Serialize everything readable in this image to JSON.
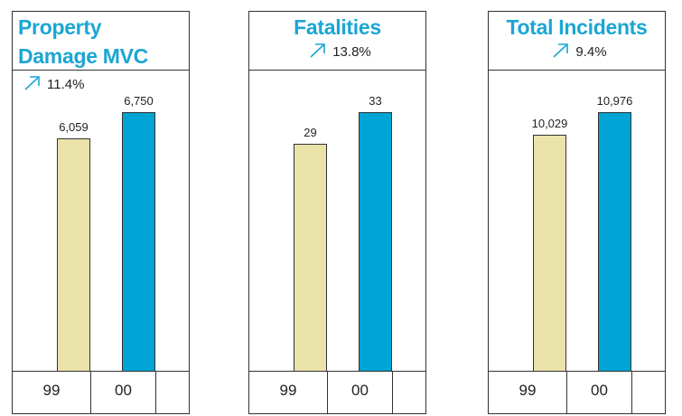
{
  "chart_data": [
    {
      "type": "bar",
      "title": "Property Damage MVC",
      "change": "11.4%",
      "categories": [
        "99",
        "00"
      ],
      "values": [
        6059,
        6750
      ],
      "value_labels": [
        "6,059",
        "6,750"
      ],
      "colors": [
        "#e9e3a9",
        "#00a5d5"
      ]
    },
    {
      "type": "bar",
      "title": "Fatalities",
      "change": "13.8%",
      "categories": [
        "99",
        "00"
      ],
      "values": [
        29,
        33
      ],
      "value_labels": [
        "29",
        "33"
      ],
      "colors": [
        "#e9e3a9",
        "#00a5d5"
      ]
    },
    {
      "type": "bar",
      "title": "Total Incidents",
      "change": "9.4%",
      "categories": [
        "99",
        "00"
      ],
      "values": [
        10029,
        10976
      ],
      "value_labels": [
        "10,029",
        "10,976"
      ],
      "colors": [
        "#e9e3a9",
        "#00a5d5"
      ]
    }
  ]
}
